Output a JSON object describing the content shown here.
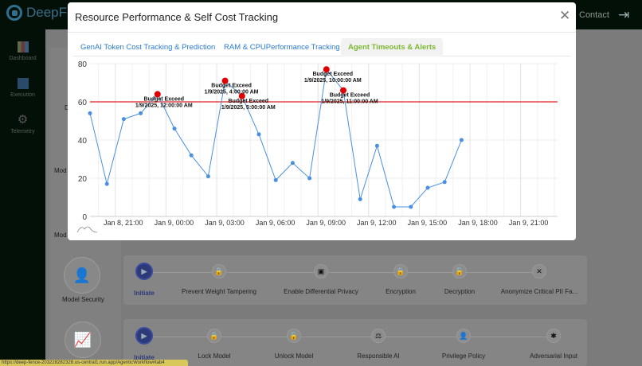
{
  "app": {
    "brand": "DeepFen",
    "contact": "Contact"
  },
  "sidebar": {
    "items": [
      {
        "label": "Dashboard",
        "icon": "chart-icon"
      },
      {
        "label": "Execution",
        "icon": "play-icon"
      },
      {
        "label": "Telemetry",
        "icon": "gear-icon"
      }
    ]
  },
  "background": {
    "stage_labels": [
      "D",
      "Mod",
      "Mod",
      "Model Security"
    ],
    "rows": [
      {
        "steps": [
          "Initiate",
          "Prevent Weight Tampering",
          "Enable Differential Privacy",
          "Encryption",
          "Decryption",
          "Anonymize Critical PII Fa..."
        ]
      },
      {
        "steps": [
          "Initiate",
          "Lock Model",
          "Unlock Model",
          "Responsible AI",
          "Privilege Policy",
          "Adversarial Input"
        ]
      }
    ]
  },
  "status_url": "https://deep-fence-203228282328.us-central1.run.app/AgenticWorkflow#tab4",
  "modal": {
    "title": "Resource Performance & Self Cost Tracking",
    "tabs": [
      {
        "label": "GenAI Token Cost Tracking & Prediction"
      },
      {
        "label": "RAM & CPUPerformance Tracking"
      },
      {
        "label": "Agent Timeouts & Alerts",
        "active": true
      }
    ]
  },
  "chart_data": {
    "type": "line",
    "title": "",
    "xlabel": "",
    "ylabel": "",
    "ylim": [
      0,
      80
    ],
    "yticks": [
      "0",
      "20",
      "40",
      "60",
      "80"
    ],
    "xticks": [
      "Jan 8, 21:00",
      "Jan 9, 00:00",
      "Jan 9, 03:00",
      "Jan 9, 06:00",
      "Jan 9, 09:00",
      "Jan 9, 12:00",
      "Jan 9, 15:00",
      "Jan 9, 18:00",
      "Jan 9, 21:00"
    ],
    "grid": true,
    "threshold": 60,
    "colors": {
      "line": "#4a90e2",
      "threshold": "#e02020",
      "alert": "#e00000"
    },
    "series": [
      {
        "x": [
          "2025-01-08 20:00",
          "2025-01-08 21:00",
          "2025-01-08 22:00",
          "2025-01-08 23:00",
          "2025-01-09 00:00",
          "2025-01-09 01:00",
          "2025-01-09 02:00",
          "2025-01-09 03:00",
          "2025-01-09 04:00",
          "2025-01-09 05:00",
          "2025-01-09 06:00",
          "2025-01-09 07:00",
          "2025-01-09 08:00",
          "2025-01-09 09:00",
          "2025-01-09 10:00",
          "2025-01-09 11:00",
          "2025-01-09 12:00",
          "2025-01-09 13:00",
          "2025-01-09 14:00",
          "2025-01-09 15:00",
          "2025-01-09 16:00",
          "2025-01-09 17:00",
          "2025-01-09 18:00"
        ],
        "values": [
          54,
          17,
          51,
          54,
          64,
          46,
          32,
          21,
          71,
          63,
          43,
          19,
          28,
          20,
          77,
          66,
          9,
          37,
          5,
          5,
          15,
          18,
          40
        ]
      }
    ],
    "annotations": [
      {
        "index": 4,
        "label": "Budget Exceed",
        "time": "1/9/2025, 12:00:00 AM"
      },
      {
        "index": 8,
        "label": "Budget Exceed",
        "time": "1/9/2025, 4:00:00 AM"
      },
      {
        "index": 9,
        "label": "Budget Exceed",
        "time": "1/9/2025, 5:00:00 AM"
      },
      {
        "index": 14,
        "label": "Budget Exceed",
        "time": "1/9/2025, 10:00:00 AM"
      },
      {
        "index": 15,
        "label": "Budget Exceed",
        "time": "1/9/2025, 11:00:00 AM"
      }
    ]
  }
}
